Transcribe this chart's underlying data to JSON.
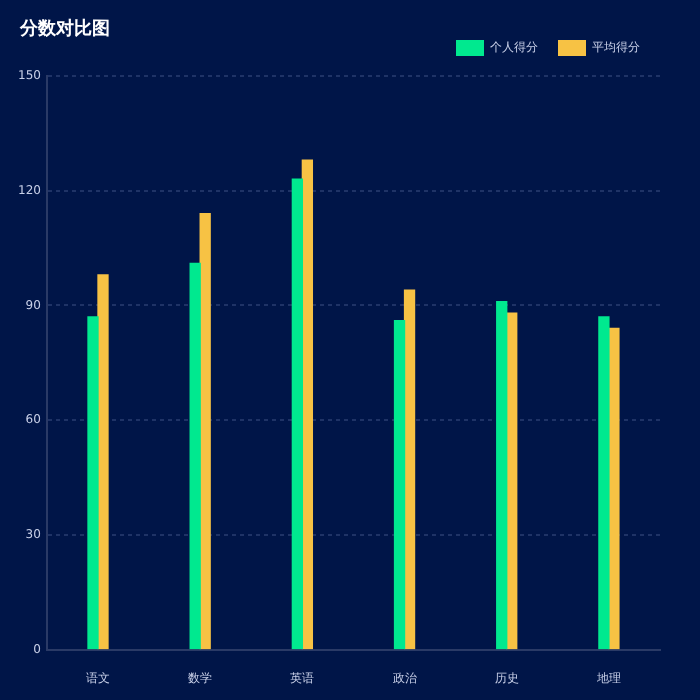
{
  "chart_data": {
    "type": "bar",
    "title": "分数对比图",
    "categories": [
      "语文",
      "数学",
      "英语",
      "政治",
      "历史",
      "地理"
    ],
    "series": [
      {
        "name": "个人得分",
        "color": "#00e98f",
        "values": [
          87,
          101,
          123,
          86,
          91,
          87
        ]
      },
      {
        "name": "平均得分",
        "color": "#f7c244",
        "values": [
          98,
          114,
          128,
          94,
          88,
          84
        ]
      }
    ],
    "ylim": [
      0,
      150
    ],
    "yticks": [
      0,
      30,
      60,
      90,
      120,
      150
    ],
    "grid": "y",
    "legend": "top right"
  }
}
